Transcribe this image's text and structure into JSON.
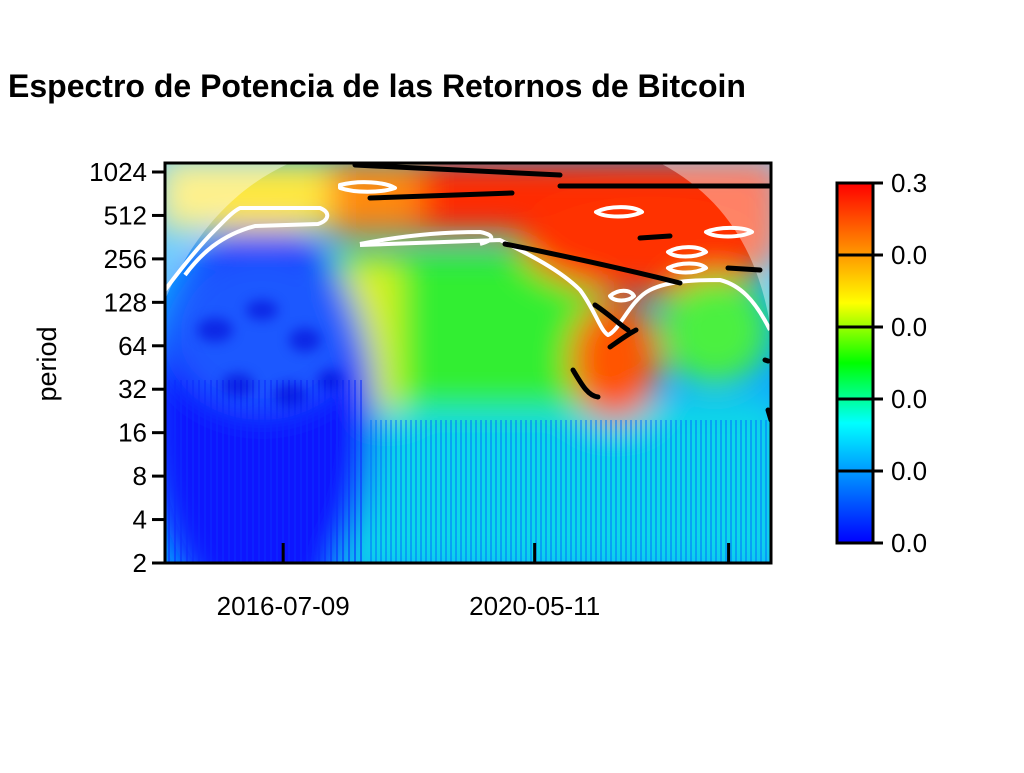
{
  "chart_data": {
    "type": "heatmap",
    "title": "Espectro de Potencia de las Retornos de Bitcoin",
    "ylabel": "period",
    "xlabel": "",
    "y_scale": "log2",
    "y_ticks": [
      "2",
      "4",
      "8",
      "16",
      "32",
      "64",
      "128",
      "256",
      "512",
      "1024"
    ],
    "y_tick_values": [
      2,
      4,
      8,
      16,
      32,
      64,
      128,
      256,
      512,
      1024
    ],
    "x_ticks": [
      "2016-07-09",
      "2020-05-11"
    ],
    "colorbar_labels": [
      "0.3",
      "0.0",
      "0.0",
      "0.0",
      "0.0",
      "0.0"
    ],
    "colorscale": [
      "#0000ff",
      "#0080ff",
      "#00ffff",
      "#00ff00",
      "#ffff00",
      "#ff8000",
      "#ff0000"
    ],
    "colors": {
      "significance_contour": "#ffffff",
      "power_ridge": "#000000",
      "cone_of_influence_overlay": "#ffffff"
    },
    "dominant_regions": [
      {
        "period_range": [
          256,
          1024
        ],
        "time": "after 2019",
        "power": "high (red)"
      },
      {
        "period_range": [
          2,
          256
        ],
        "time": "2015-2017",
        "power": "low (blue)"
      },
      {
        "period_range": [
          16,
          128
        ],
        "time": "2021-2022",
        "power": "medium-high (orange/red)"
      }
    ]
  }
}
